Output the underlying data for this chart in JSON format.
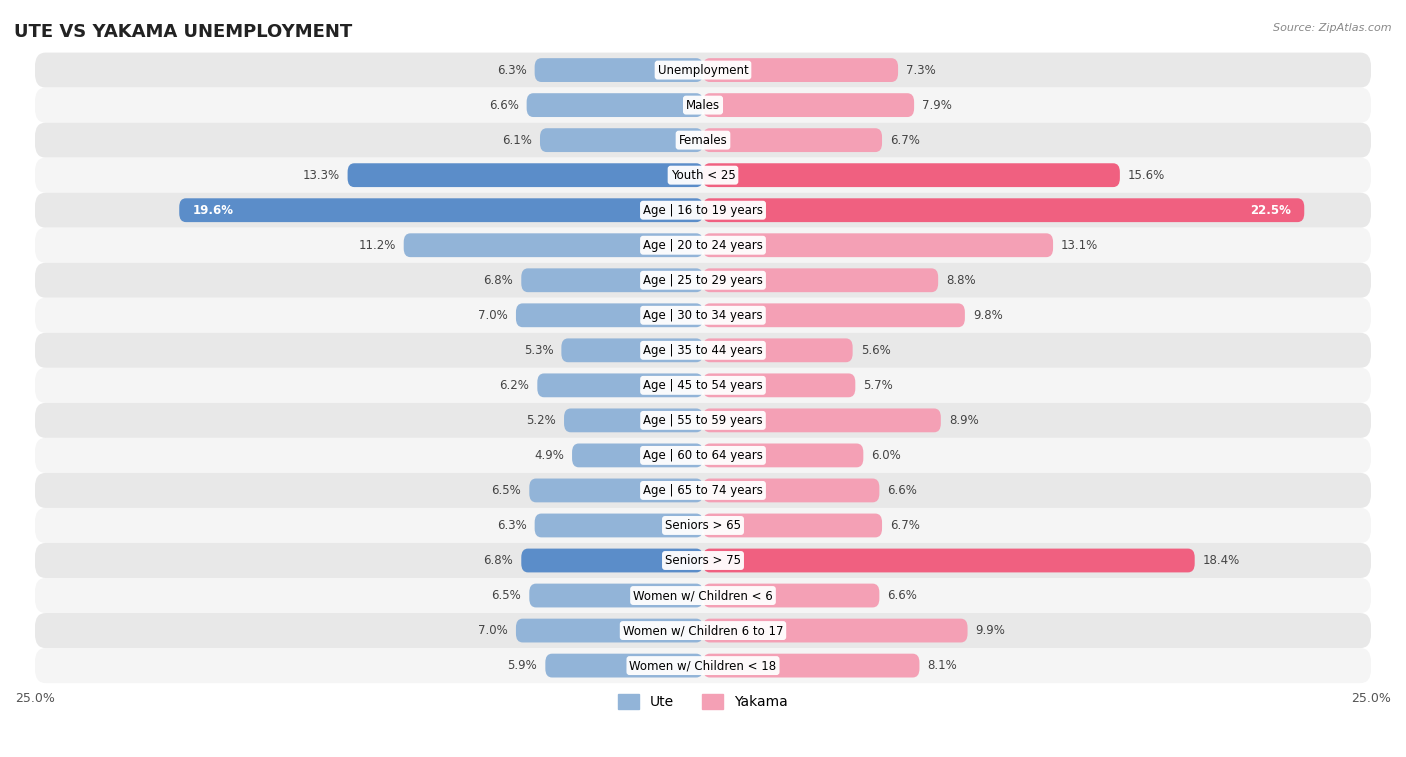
{
  "title": "UTE VS YAKAMA UNEMPLOYMENT",
  "source": "Source: ZipAtlas.com",
  "categories": [
    "Unemployment",
    "Males",
    "Females",
    "Youth < 25",
    "Age | 16 to 19 years",
    "Age | 20 to 24 years",
    "Age | 25 to 29 years",
    "Age | 30 to 34 years",
    "Age | 35 to 44 years",
    "Age | 45 to 54 years",
    "Age | 55 to 59 years",
    "Age | 60 to 64 years",
    "Age | 65 to 74 years",
    "Seniors > 65",
    "Seniors > 75",
    "Women w/ Children < 6",
    "Women w/ Children 6 to 17",
    "Women w/ Children < 18"
  ],
  "ute_values": [
    6.3,
    6.6,
    6.1,
    13.3,
    19.6,
    11.2,
    6.8,
    7.0,
    5.3,
    6.2,
    5.2,
    4.9,
    6.5,
    6.3,
    6.8,
    6.5,
    7.0,
    5.9
  ],
  "yakama_values": [
    7.3,
    7.9,
    6.7,
    15.6,
    22.5,
    13.1,
    8.8,
    9.8,
    5.6,
    5.7,
    8.9,
    6.0,
    6.6,
    6.7,
    18.4,
    6.6,
    9.9,
    8.1
  ],
  "ute_color": "#92b4d8",
  "yakama_color": "#f4a0b5",
  "ute_highlight_color": "#5b8dc9",
  "yakama_highlight_color": "#f06080",
  "highlight_rows": [
    3,
    4,
    14
  ],
  "xlim": 25.0,
  "bar_height": 0.68,
  "bg_color_odd": "#e8e8e8",
  "bg_color_even": "#f5f5f5",
  "label_fontsize": 8.5,
  "value_fontsize": 8.5,
  "legend_label_ute": "Ute",
  "legend_label_yakama": "Yakama"
}
